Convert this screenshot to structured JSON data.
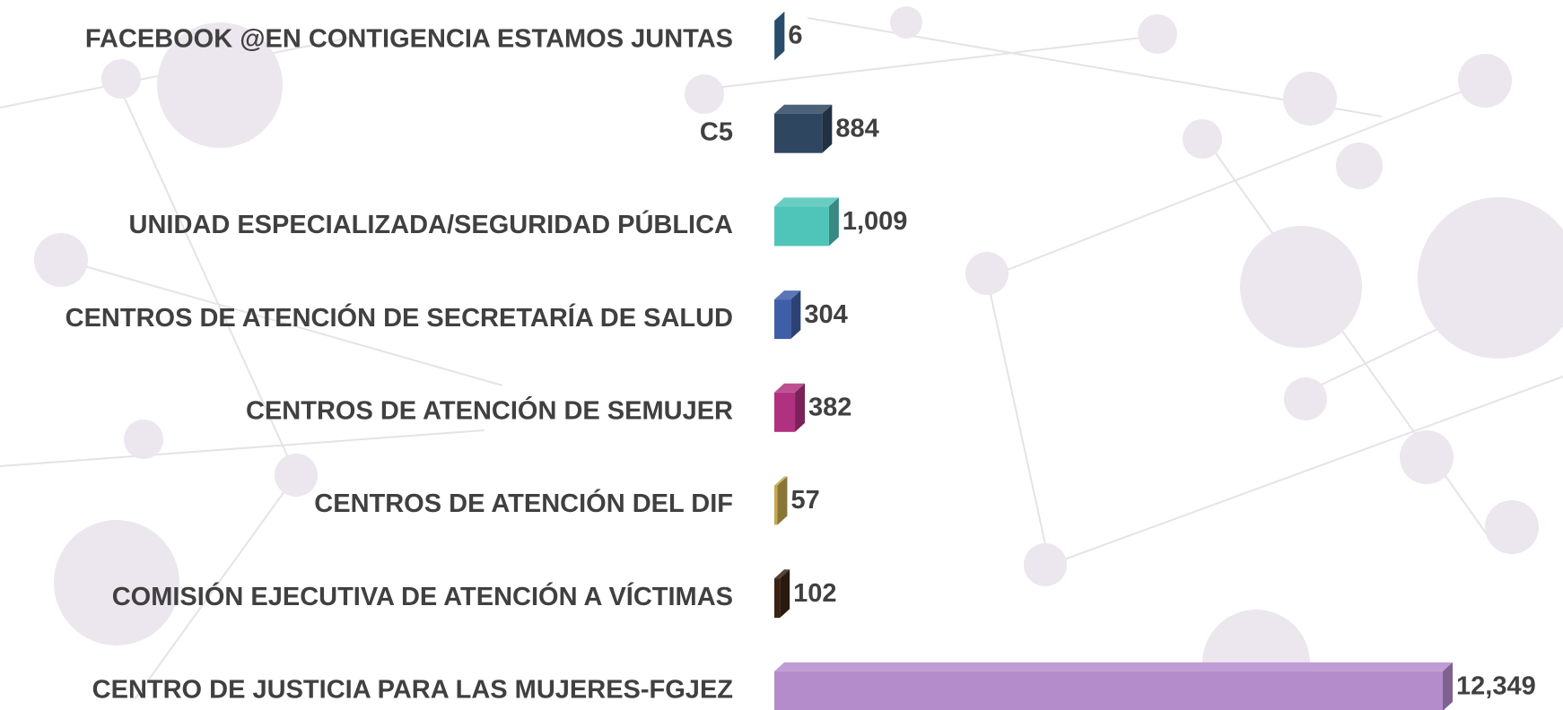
{
  "chart_data": {
    "type": "bar",
    "orientation": "horizontal",
    "categories": [
      "FACEBOOK @EN CONTIGENCIA ESTAMOS JUNTAS",
      "C5",
      "UNIDAD ESPECIALIZADA/SEGURIDAD PÚBLICA",
      "CENTROS DE ATENCIÓN  DE SECRETARÍA  DE SALUD",
      "CENTROS DE ATENCIÓN DE SEMUJER",
      "CENTROS DE ATENCIÓN  DEL DIF",
      "COMISIÓN EJECUTIVA DE ATENCIÓN A VÍCTIMAS",
      "CENTRO DE JUSTICIA PARA LAS MUJERES-FGJEZ"
    ],
    "values": [
      6,
      884,
      1009,
      304,
      382,
      57,
      102,
      12349
    ],
    "value_labels": [
      "6",
      "884",
      "1,009",
      "304",
      "382",
      "57",
      "102",
      "12,349"
    ],
    "colors": [
      "#3a6d99",
      "#2e4660",
      "#4fc4b8",
      "#3f5ea8",
      "#b0317f",
      "#c4a84f",
      "#3a2314",
      "#b48ccc"
    ]
  }
}
